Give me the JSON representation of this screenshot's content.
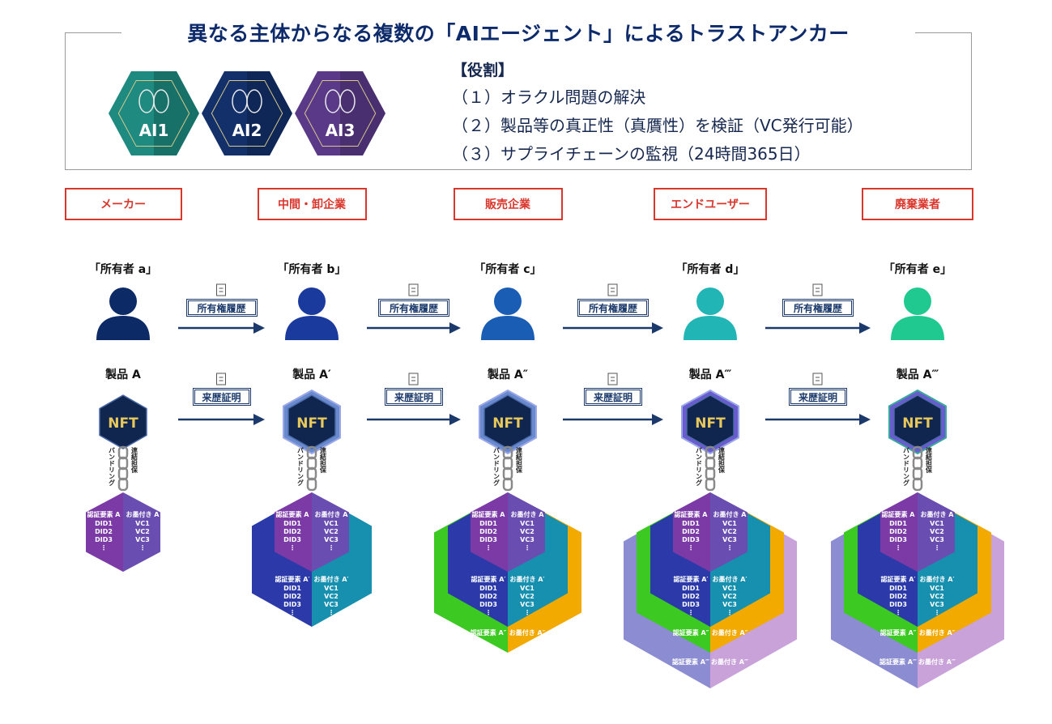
{
  "title": "異なる主体からなる複数の「AIエージェント」によるトラストアンカー",
  "ai_agents": [
    {
      "label": "AI1",
      "color": "#1e8a80"
    },
    {
      "label": "AI2",
      "color": "#13306a"
    },
    {
      "label": "AI3",
      "color": "#5a3a88"
    }
  ],
  "roles": {
    "heading": "【役割】",
    "items": [
      "（１）オラクル問題の解決",
      "（２）製品等の真正性（真贋性）を検証（VC発行可能）",
      "（３）サプライチェーンの監視（24時間365日）"
    ]
  },
  "stages": [
    {
      "role": "メーカー",
      "owner": "「所有者 a」",
      "product": "製品 A",
      "person_color": "#0c2a66"
    },
    {
      "role": "中間・卸企業",
      "owner": "「所有者 b」",
      "product": "製品 A′",
      "person_color": "#1a3a9e"
    },
    {
      "role": "販売企業",
      "owner": "「所有者 c」",
      "product": "製品 A″",
      "person_color": "#1a5db5"
    },
    {
      "role": "エンドユーザー",
      "owner": "「所有者 d」",
      "product": "製品 A‴",
      "person_color": "#22b5b5"
    },
    {
      "role": "廃棄業者",
      "owner": "「所有者 e」",
      "product": "製品 A‴",
      "person_color": "#1fc98f"
    }
  ],
  "transfer": {
    "ownership_label": "所有権履歴",
    "provenance_label": "来歴証明"
  },
  "nft_label": "NFT",
  "chain": {
    "left": "バンドリング",
    "right": "連結担保"
  },
  "layers": [
    {
      "left": "認証要素 A",
      "right": "お墨付き A",
      "left_items": [
        "DID1",
        "DID2",
        "DID3",
        "⋮"
      ],
      "right_items": [
        "VC1",
        "VC2",
        "VC3",
        "⋮"
      ],
      "left_color": "#7b3aa6",
      "right_color": "#6a4db0"
    },
    {
      "left": "認証要素 A′",
      "right": "お墨付き A′",
      "left_items": [
        "DID1",
        "DID2",
        "DID3",
        "⋮"
      ],
      "right_items": [
        "VC1",
        "VC2",
        "VC3",
        "⋮"
      ],
      "left_color": "#2b3aa8",
      "right_color": "#178fae"
    },
    {
      "left": "認証要素 A″",
      "right": "お墨付き A″",
      "left_items": [],
      "right_items": [],
      "left_color": "#3cc922",
      "right_color": "#f2a900"
    },
    {
      "left": "認証要素 A‴",
      "right": "お墨付き A‴",
      "left_items": [],
      "right_items": [],
      "left_color": "#8c8cd2",
      "right_color": "#c9a2da"
    }
  ]
}
